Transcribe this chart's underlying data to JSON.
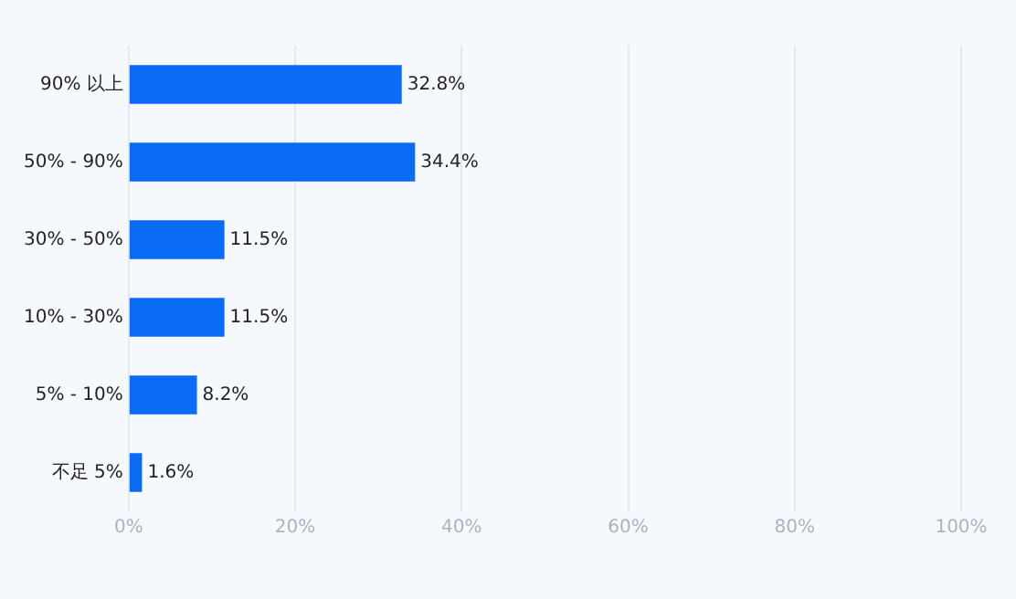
{
  "chart_data": {
    "type": "bar",
    "orientation": "horizontal",
    "categories": [
      "90% 以上",
      "50% - 90%",
      "30% - 50%",
      "10% - 30%",
      "5% - 10%",
      "不足 5%"
    ],
    "values": [
      32.8,
      34.4,
      11.5,
      11.5,
      8.2,
      1.6
    ],
    "value_labels": [
      "32.8%",
      "34.4%",
      "11.5%",
      "11.5%",
      "8.2%",
      "1.6%"
    ],
    "color": "#0a6cf5",
    "xlim": [
      0,
      100
    ],
    "xticks": [
      {
        "value": 0,
        "label": "0%"
      },
      {
        "value": 20,
        "label": "20%"
      },
      {
        "value": 40,
        "label": "40%"
      },
      {
        "value": 60,
        "label": "60%"
      },
      {
        "value": 80,
        "label": "80%"
      },
      {
        "value": 100,
        "label": "100%"
      }
    ],
    "grid": "x",
    "legend": false
  }
}
